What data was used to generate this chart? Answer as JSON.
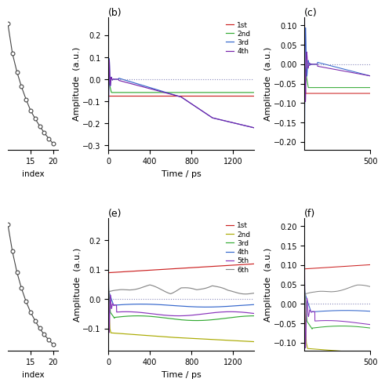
{
  "panel_b": {
    "label": "(b)",
    "xlabel": "Time / ps",
    "ylabel": "Amplitude  (a.u.)",
    "xlim": [
      0,
      1400
    ],
    "ylim": [
      -0.32,
      0.28
    ],
    "yticks": [
      -0.3,
      -0.2,
      -0.1,
      0.0,
      0.1,
      0.2
    ],
    "xticks": [
      0,
      400,
      800,
      1200
    ],
    "series": [
      {
        "label": "1st",
        "color": "#cc2222"
      },
      {
        "label": "2nd",
        "color": "#33aa33"
      },
      {
        "label": "3rd",
        "color": "#3366cc"
      },
      {
        "label": "4th",
        "color": "#7722aa"
      }
    ]
  },
  "panel_e": {
    "label": "(e)",
    "xlabel": "Time / ps",
    "ylabel": "Amplitude  (a.u.)",
    "xlim": [
      0,
      1400
    ],
    "ylim": [
      -0.175,
      0.275
    ],
    "yticks": [
      -0.1,
      0.0,
      0.1,
      0.2
    ],
    "xticks": [
      0,
      400,
      800,
      1200
    ],
    "series": [
      {
        "label": "1st",
        "color": "#cc2222"
      },
      {
        "label": "2nd",
        "color": "#aaaa00"
      },
      {
        "label": "3rd",
        "color": "#33aa33"
      },
      {
        "label": "4th",
        "color": "#3366cc"
      },
      {
        "label": "5th",
        "color": "#8833bb"
      },
      {
        "label": "6th",
        "color": "#888888"
      }
    ]
  },
  "panel_c": {
    "label": "(c)",
    "ylabel": "Amplitude  (a.u.)",
    "xlim": [
      0,
      500
    ],
    "ylim": [
      -0.22,
      0.12
    ],
    "yticks": [
      -0.2,
      -0.15,
      -0.1,
      -0.05,
      0.0,
      0.05,
      0.1
    ],
    "xticks": [
      500
    ]
  },
  "panel_f": {
    "label": "(f)",
    "ylabel": "Amplitude  (a.u.)",
    "xlim": [
      0,
      500
    ],
    "ylim": [
      -0.12,
      0.22
    ],
    "yticks": [
      -0.1,
      -0.05,
      0.0,
      0.05,
      0.1,
      0.15,
      0.2
    ],
    "xticks": [
      500
    ]
  },
  "panel_a": {
    "xlabel": "index",
    "xticks": [
      15,
      20
    ],
    "xlim": [
      10,
      21
    ]
  },
  "panel_d": {
    "xlabel": "index",
    "xticks": [
      15,
      20
    ],
    "xlim": [
      10,
      21
    ]
  },
  "dotted_color": "#8888bb",
  "bg_color": "#ffffff"
}
